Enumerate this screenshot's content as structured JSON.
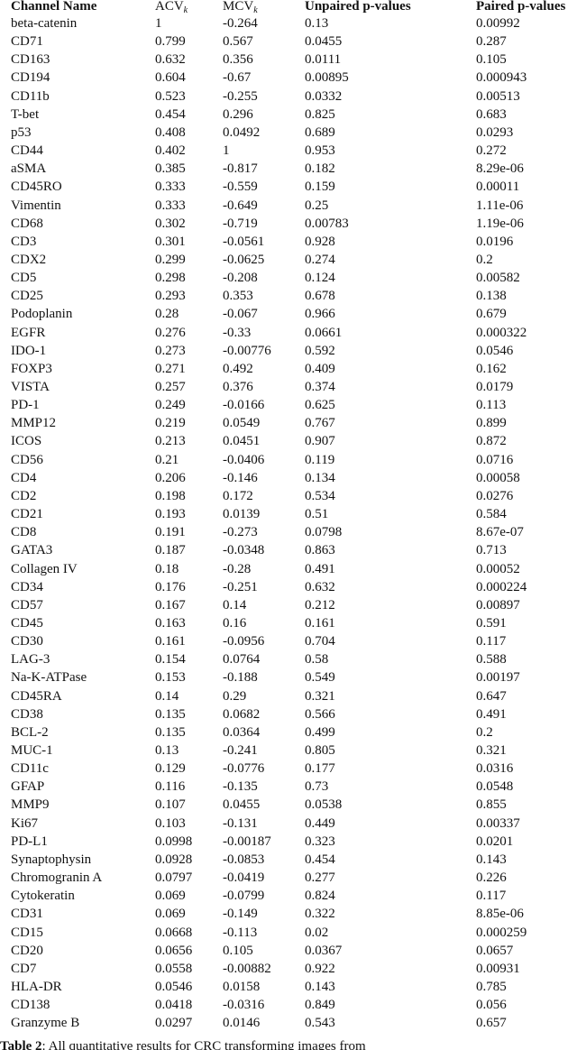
{
  "table": {
    "header": {
      "channel": "Channel Name",
      "acv": "ACV",
      "acv_sub": "k",
      "mcv": "MCV",
      "mcv_sub": "k",
      "unpaired": "Unpaired p-values",
      "paired": "Paired p-values"
    },
    "rows": [
      [
        "beta-catenin",
        "1",
        "-0.264",
        "0.13",
        "0.00992"
      ],
      [
        "CD71",
        "0.799",
        "0.567",
        "0.0455",
        "0.287"
      ],
      [
        "CD163",
        "0.632",
        "0.356",
        "0.0111",
        "0.105"
      ],
      [
        "CD194",
        "0.604",
        "-0.67",
        "0.00895",
        "0.000943"
      ],
      [
        "CD11b",
        "0.523",
        "-0.255",
        "0.0332",
        "0.00513"
      ],
      [
        "T-bet",
        "0.454",
        "0.296",
        "0.825",
        "0.683"
      ],
      [
        "p53",
        "0.408",
        "0.0492",
        "0.689",
        "0.0293"
      ],
      [
        "CD44",
        "0.402",
        "1",
        "0.953",
        "0.272"
      ],
      [
        "aSMA",
        "0.385",
        "-0.817",
        "0.182",
        "8.29e-06"
      ],
      [
        "CD45RO",
        "0.333",
        "-0.559",
        "0.159",
        "0.00011"
      ],
      [
        "Vimentin",
        "0.333",
        "-0.649",
        "0.25",
        "1.11e-06"
      ],
      [
        "CD68",
        "0.302",
        "-0.719",
        "0.00783",
        "1.19e-06"
      ],
      [
        "CD3",
        "0.301",
        "-0.0561",
        "0.928",
        "0.0196"
      ],
      [
        "CDX2",
        "0.299",
        "-0.0625",
        "0.274",
        "0.2"
      ],
      [
        "CD5",
        "0.298",
        "-0.208",
        "0.124",
        "0.00582"
      ],
      [
        "CD25",
        "0.293",
        "0.353",
        "0.678",
        "0.138"
      ],
      [
        "Podoplanin",
        "0.28",
        "-0.067",
        "0.966",
        "0.679"
      ],
      [
        "EGFR",
        "0.276",
        "-0.33",
        "0.0661",
        "0.000322"
      ],
      [
        "IDO-1",
        "0.273",
        "-0.00776",
        "0.592",
        "0.0546"
      ],
      [
        "FOXP3",
        "0.271",
        "0.492",
        "0.409",
        "0.162"
      ],
      [
        "VISTA",
        "0.257",
        "0.376",
        "0.374",
        "0.0179"
      ],
      [
        "PD-1",
        "0.249",
        "-0.0166",
        "0.625",
        "0.113"
      ],
      [
        "MMP12",
        "0.219",
        "0.0549",
        "0.767",
        "0.899"
      ],
      [
        "ICOS",
        "0.213",
        "0.0451",
        "0.907",
        "0.872"
      ],
      [
        "CD56",
        "0.21",
        "-0.0406",
        "0.119",
        "0.0716"
      ],
      [
        "CD4",
        "0.206",
        "-0.146",
        "0.134",
        "0.00058"
      ],
      [
        "CD2",
        "0.198",
        "0.172",
        "0.534",
        "0.0276"
      ],
      [
        "CD21",
        "0.193",
        "0.0139",
        "0.51",
        "0.584"
      ],
      [
        "CD8",
        "0.191",
        "-0.273",
        "0.0798",
        "8.67e-07"
      ],
      [
        "GATA3",
        "0.187",
        "-0.0348",
        "0.863",
        "0.713"
      ],
      [
        "Collagen IV",
        "0.18",
        "-0.28",
        "0.491",
        "0.00052"
      ],
      [
        "CD34",
        "0.176",
        "-0.251",
        "0.632",
        "0.000224"
      ],
      [
        "CD57",
        "0.167",
        "0.14",
        "0.212",
        "0.00897"
      ],
      [
        "CD45",
        "0.163",
        "0.16",
        "0.161",
        "0.591"
      ],
      [
        "CD30",
        "0.161",
        "-0.0956",
        "0.704",
        "0.117"
      ],
      [
        "LAG-3",
        "0.154",
        "0.0764",
        "0.58",
        "0.588"
      ],
      [
        "Na-K-ATPase",
        "0.153",
        "-0.188",
        "0.549",
        "0.00197"
      ],
      [
        "CD45RA",
        "0.14",
        "0.29",
        "0.321",
        "0.647"
      ],
      [
        "CD38",
        "0.135",
        "0.0682",
        "0.566",
        "0.491"
      ],
      [
        "BCL-2",
        "0.135",
        "0.0364",
        "0.499",
        "0.2"
      ],
      [
        "MUC-1",
        "0.13",
        "-0.241",
        "0.805",
        "0.321"
      ],
      [
        "CD11c",
        "0.129",
        "-0.0776",
        "0.177",
        "0.0316"
      ],
      [
        "GFAP",
        "0.116",
        "-0.135",
        "0.73",
        "0.0548"
      ],
      [
        "MMP9",
        "0.107",
        "0.0455",
        "0.0538",
        "0.855"
      ],
      [
        "Ki67",
        "0.103",
        "-0.131",
        "0.449",
        "0.00337"
      ],
      [
        "PD-L1",
        "0.0998",
        "-0.00187",
        "0.323",
        "0.0201"
      ],
      [
        "Synaptophysin",
        "0.0928",
        "-0.0853",
        "0.454",
        "0.143"
      ],
      [
        "Chromogranin A",
        "0.0797",
        "-0.0419",
        "0.277",
        "0.226"
      ],
      [
        "Cytokeratin",
        "0.069",
        "-0.0799",
        "0.824",
        "0.117"
      ],
      [
        "CD31",
        "0.069",
        "-0.149",
        "0.322",
        "8.85e-06"
      ],
      [
        "CD15",
        "0.0668",
        "-0.113",
        "0.02",
        "0.000259"
      ],
      [
        "CD20",
        "0.0656",
        "0.105",
        "0.0367",
        "0.0657"
      ],
      [
        "CD7",
        "0.0558",
        "-0.00882",
        "0.922",
        "0.00931"
      ],
      [
        "HLA-DR",
        "0.0546",
        "0.0158",
        "0.143",
        "0.785"
      ],
      [
        "CD138",
        "0.0418",
        "-0.0316",
        "0.849",
        "0.056"
      ],
      [
        "Granzyme B",
        "0.0297",
        "0.0146",
        "0.543",
        "0.657"
      ]
    ]
  },
  "caption": {
    "label": "Table 2",
    "text": ": All quantitative results for CRC transforming images from"
  }
}
